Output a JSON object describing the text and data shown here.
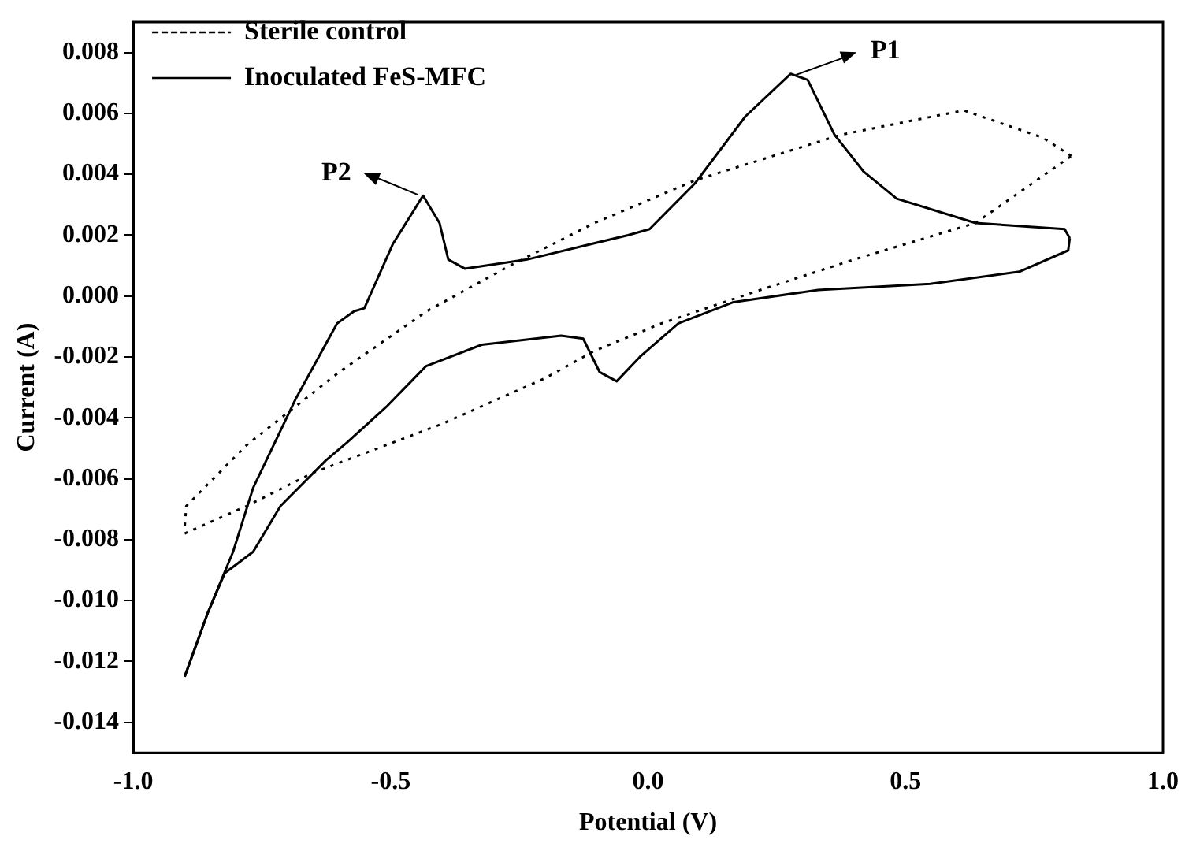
{
  "chart_data": {
    "type": "line",
    "xlabel": "Potential (V)",
    "ylabel": "Current (A)",
    "xlim": [
      -1.0,
      1.0
    ],
    "xticks": [
      {
        "value": -1.0,
        "label": "-1.0"
      },
      -0.5,
      {
        "value": 0.0,
        "label": "0.0"
      },
      0.5,
      {
        "value": 1.0,
        "label": "1.0"
      }
    ],
    "ylim": [
      -0.015,
      0.009
    ],
    "yticks": [
      {
        "value": -0.014,
        "label": "-0.014"
      },
      {
        "value": -0.012,
        "label": "-0.012"
      },
      {
        "value": -0.01,
        "label": "-0.010"
      },
      {
        "value": -0.008,
        "label": "-0.008"
      },
      {
        "value": -0.006,
        "label": "-0.006"
      },
      {
        "value": -0.004,
        "label": "-0.004"
      },
      {
        "value": -0.002,
        "label": "-0.002"
      },
      {
        "value": 0.0,
        "label": "0.000"
      },
      {
        "value": 0.002,
        "label": "0.002"
      },
      {
        "value": 0.004,
        "label": "0.004"
      },
      {
        "value": 0.006,
        "label": "0.006"
      },
      {
        "value": 0.008,
        "label": "0.008"
      }
    ],
    "grid": false,
    "legend": "top left",
    "marker": "none",
    "series": [
      {
        "name": "Sterile control",
        "color": "#000000",
        "line_style": "dotted",
        "x": [
          -0.9,
          -0.78,
          -0.65,
          -0.4,
          -0.2,
          -0.104,
          0.026,
          0.2,
          0.4,
          0.636,
          0.822
        ],
        "values": [
          -0.0078,
          -0.0069,
          -0.0058,
          -0.0042,
          -0.0027,
          -0.0018,
          -0.0009,
          0.0001,
          0.0012,
          0.0024,
          0.0046
        ]
      },
      {
        "color": "#000000",
        "line_style": "dotted",
        "x": [
          0.822,
          0.767,
          0.613,
          0.375,
          0.091,
          -0.104,
          -0.268,
          -0.43,
          -0.6,
          -0.78,
          -0.897,
          -0.9
        ],
        "values": [
          0.0046,
          0.0052,
          0.0061,
          0.0053,
          0.0038,
          0.0024,
          0.001,
          -0.0005,
          -0.0025,
          -0.0049,
          -0.0069,
          -0.0076
        ]
      },
      {
        "name": "Inoculated FeS-MFC",
        "color": "#000000",
        "line_style": "solid",
        "x": [
          -0.9,
          -0.855,
          -0.806,
          -0.767,
          -0.685,
          -0.604,
          -0.571,
          -0.551,
          -0.496,
          -0.437,
          -0.405,
          -0.388,
          -0.356,
          -0.235,
          -0.039,
          0.003,
          0.091,
          0.189,
          0.277,
          0.31,
          0.362,
          0.418,
          0.483,
          0.636,
          0.809,
          0.819
        ],
        "values": [
          -0.0125,
          -0.0104,
          -0.0084,
          -0.0063,
          -0.0034,
          -0.0009,
          -0.0005,
          -0.0004,
          0.0017,
          0.0033,
          0.0024,
          0.0012,
          0.0009,
          0.0012,
          0.002,
          0.0022,
          0.0037,
          0.0059,
          0.0073,
          0.0071,
          0.0053,
          0.0041,
          0.0032,
          0.0024,
          0.0022,
          0.0019
        ]
      },
      {
        "color": "#000000",
        "line_style": "solid",
        "x": [
          0.819,
          0.816,
          0.721,
          0.548,
          0.33,
          0.166,
          0.059,
          -0.016,
          -0.061,
          -0.094,
          -0.126,
          -0.169,
          -0.323,
          -0.431,
          -0.506,
          -0.584,
          -0.626,
          -0.714,
          -0.767,
          -0.822,
          -0.855,
          -0.9
        ],
        "values": [
          0.0019,
          0.0015,
          0.0008,
          0.0004,
          0.0002,
          -0.0002,
          -0.0009,
          -0.002,
          -0.0028,
          -0.0025,
          -0.0014,
          -0.0013,
          -0.0016,
          -0.0023,
          -0.0036,
          -0.0048,
          -0.0054,
          -0.0069,
          -0.0084,
          -0.0091,
          -0.0104,
          -0.0125
        ]
      }
    ],
    "annotations": [
      {
        "text": "P1",
        "x": 0.277,
        "y": 0.0073
      },
      {
        "text": "P2",
        "x": -0.437,
        "y": 0.0033
      }
    ]
  }
}
